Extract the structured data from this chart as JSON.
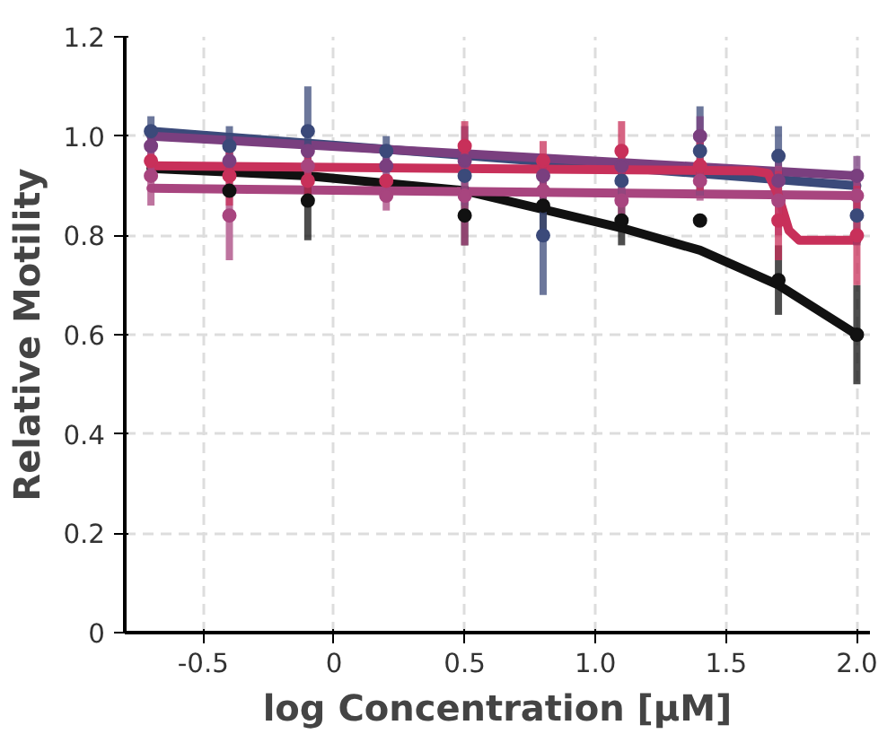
{
  "chart_data": {
    "type": "scatter",
    "xlabel": "log Concentration [µM]",
    "ylabel": "Relative Motility",
    "x": [
      -0.7,
      -0.4,
      -0.1,
      0.2,
      0.5,
      0.8,
      1.1,
      1.4,
      1.7,
      2.0
    ],
    "xlim": [
      -0.8,
      2.05
    ],
    "ylim": [
      0,
      1.2
    ],
    "xticks": [
      -0.5,
      0,
      0.5,
      {
        "value": 1,
        "label": "1.0"
      },
      1.5,
      {
        "value": 2,
        "label": "2.0"
      }
    ],
    "yticks": [
      0,
      0.2,
      0.4,
      0.6,
      0.8,
      {
        "value": 1,
        "label": "1.0"
      },
      1.2
    ],
    "grid": true,
    "marker": "circle",
    "series": [
      {
        "color": "#111111",
        "values": [
          null,
          0.89,
          0.87,
          null,
          0.84,
          0.86,
          0.83,
          0.83,
          0.71,
          0.6
        ],
        "errors": [
          null,
          null,
          0.08,
          null,
          0.06,
          0.05,
          0.05,
          0.01,
          0.07,
          0.1
        ]
      },
      {
        "color": "#3b4a7a",
        "values": [
          1.01,
          0.98,
          1.01,
          0.97,
          0.92,
          0.8,
          0.91,
          0.97,
          0.96,
          0.84
        ],
        "errors": [
          0.03,
          0.04,
          0.09,
          0.03,
          [
            0.86,
            1.02
          ],
          0.12,
          0.05,
          0.09,
          0.06,
          0.06
        ]
      },
      {
        "color": "#7a3f7f",
        "values": [
          0.98,
          0.95,
          0.97,
          0.94,
          0.95,
          0.92,
          0.94,
          1.0,
          0.91,
          0.92
        ],
        "errors": [
          0.04,
          0.04,
          null,
          0.04,
          0.04,
          0.04,
          0.04,
          0.04,
          0.04,
          0.04
        ]
      },
      {
        "color": "#a8457f",
        "values": [
          0.92,
          0.84,
          0.94,
          0.88,
          0.88,
          0.89,
          0.87,
          0.91,
          0.87,
          0.88
        ],
        "errors": [
          0.06,
          0.09,
          0.04,
          0.03,
          0.1,
          0.04,
          0.05,
          0.04,
          0.07,
          0.05
        ]
      },
      {
        "color": "#c8305a",
        "values": [
          0.95,
          0.92,
          0.91,
          0.91,
          0.98,
          0.95,
          0.97,
          0.94,
          0.83,
          0.8
        ],
        "errors": [
          null,
          0.06,
          0.05,
          null,
          0.05,
          0.04,
          0.06,
          0.05,
          [
            0.75,
            0.93
          ],
          0.1
        ]
      },
      {
        "type": "line",
        "marker": "none",
        "color": "#111111",
        "x": [
          -0.7,
          -0.1,
          0.5,
          1.1,
          1.4,
          1.7,
          2.0
        ],
        "values": [
          0.935,
          0.92,
          0.89,
          0.815,
          0.77,
          0.7,
          0.6
        ]
      },
      {
        "type": "line",
        "marker": "none",
        "color": "#3b4a7a",
        "x": [
          -0.7,
          2.0
        ],
        "values": [
          1.01,
          0.9
        ]
      },
      {
        "type": "line",
        "marker": "none",
        "color": "#7a3f7f",
        "x": [
          -0.7,
          2.0
        ],
        "values": [
          1.0,
          0.92
        ]
      },
      {
        "type": "line",
        "marker": "none",
        "color": "#a8457f",
        "x": [
          -0.7,
          2.0
        ],
        "values": [
          0.895,
          0.88
        ]
      },
      {
        "type": "line",
        "marker": "none",
        "color": "#c8305a",
        "x": [
          -0.7,
          1.6,
          1.66,
          1.7,
          1.74,
          1.78,
          2.0
        ],
        "values": [
          0.94,
          0.93,
          0.925,
          0.88,
          0.81,
          0.79,
          0.79
        ]
      }
    ]
  }
}
